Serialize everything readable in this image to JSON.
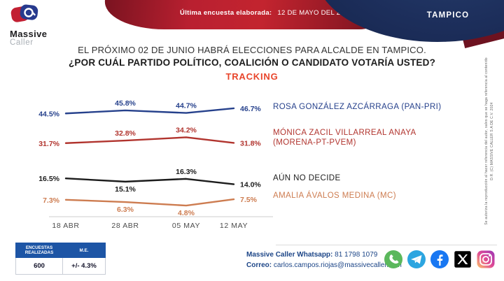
{
  "header": {
    "logo_line1": "Massive",
    "logo_line2": "Caller",
    "banner_label": "Última encuesta elaborada:",
    "banner_date": "12 DE MAYO DEL 2024",
    "city": "TAMPICO"
  },
  "title": {
    "line1": "EL PRÓXIMO 02 DE JUNIO HABRÁ ELECCIONES PARA ALCALDE EN TAMPICO.",
    "line2": "¿POR CUÁL PARTIDO POLÍTICO, COALICIÓN O CANDIDATO VOTARÍA USTED?",
    "tracking": "TRACKING",
    "tracking_color": "#e8452b"
  },
  "chart_data": {
    "type": "line",
    "title": "TRACKING",
    "x": [
      "18 ABR",
      "28 ABR",
      "05 MAY",
      "12 MAY"
    ],
    "ylim": [
      0,
      52
    ],
    "grid": false,
    "value_labels": true,
    "legend_position": "right",
    "series": [
      {
        "name": "ROSA GONZÁLEZ AZCÁRRAGA (PAN-PRI)",
        "color": "#26418c",
        "values": [
          44.5,
          45.8,
          44.7,
          46.7
        ],
        "label_pos": [
          "left",
          "top",
          "top",
          "right"
        ]
      },
      {
        "name": "MÓNICA ZACIL VILLARREAL ANAYA (MORENA-PT-PVEM)",
        "color": "#b1342e",
        "values": [
          31.7,
          32.8,
          34.2,
          31.8
        ],
        "label_pos": [
          "left",
          "top",
          "top",
          "right"
        ]
      },
      {
        "name": "AÚN NO DECIDE",
        "color": "#1c1c1c",
        "values": [
          16.5,
          15.1,
          16.3,
          14.0
        ],
        "label_pos": [
          "left",
          "bottom",
          "top",
          "right"
        ]
      },
      {
        "name": "AMALIA ÁVALOS MEDINA (MC)",
        "color": "#cd7c50",
        "values": [
          7.3,
          6.3,
          4.8,
          7.5
        ],
        "label_pos": [
          "left",
          "bottom",
          "bottom",
          "right"
        ]
      }
    ]
  },
  "stats": {
    "col1_header": "ENCUESTAS REALIZADAS",
    "col2_header": "M.E.",
    "col1_value": "600",
    "col2_value": "+/- 4.3%"
  },
  "footer": {
    "whatsapp_label": "Massive Caller Whatsapp:",
    "whatsapp_number": "81 1798 1079",
    "email_label": "Correo:",
    "email": "carlos.campos.riojas@massivecaller.com"
  },
  "copyright": {
    "line1": "D.R. (C) MASSIVE CALLER S.A DE C.V. 2024",
    "line2": "Se autoriza la reproducción al hacer referencia del autor, salvo que se haga referencia al contenido"
  }
}
